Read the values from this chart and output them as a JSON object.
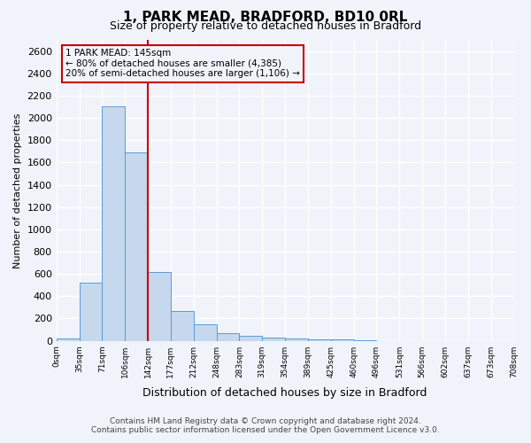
{
  "title": "1, PARK MEAD, BRADFORD, BD10 0RL",
  "subtitle": "Size of property relative to detached houses in Bradford",
  "xlabel": "Distribution of detached houses by size in Bradford",
  "ylabel": "Number of detached properties",
  "bin_labels": [
    "0sqm",
    "35sqm",
    "71sqm",
    "106sqm",
    "142sqm",
    "177sqm",
    "212sqm",
    "248sqm",
    "283sqm",
    "319sqm",
    "354sqm",
    "389sqm",
    "425sqm",
    "460sqm",
    "496sqm",
    "531sqm",
    "566sqm",
    "602sqm",
    "637sqm",
    "673sqm",
    "708sqm"
  ],
  "bar_values": [
    20,
    520,
    2100,
    1690,
    620,
    265,
    150,
    65,
    45,
    30,
    20,
    10,
    10,
    5,
    0,
    0,
    0,
    0,
    0,
    0
  ],
  "bar_color": "#c5d8ed",
  "bar_edge_color": "#5b9bd5",
  "vline_x": 4,
  "vline_color": "#cc0000",
  "ylim": [
    0,
    2700
  ],
  "yticks": [
    0,
    200,
    400,
    600,
    800,
    1000,
    1200,
    1400,
    1600,
    1800,
    2000,
    2200,
    2400,
    2600
  ],
  "annotation_title": "1 PARK MEAD: 145sqm",
  "annotation_line1": "← 80% of detached houses are smaller (4,385)",
  "annotation_line2": "20% of semi-detached houses are larger (1,106) →",
  "annotation_box_color": "#cc0000",
  "footer_line1": "Contains HM Land Registry data © Crown copyright and database right 2024.",
  "footer_line2": "Contains public sector information licensed under the Open Government Licence v3.0.",
  "background_color": "#f0f4fa",
  "grid_color": "#ffffff"
}
